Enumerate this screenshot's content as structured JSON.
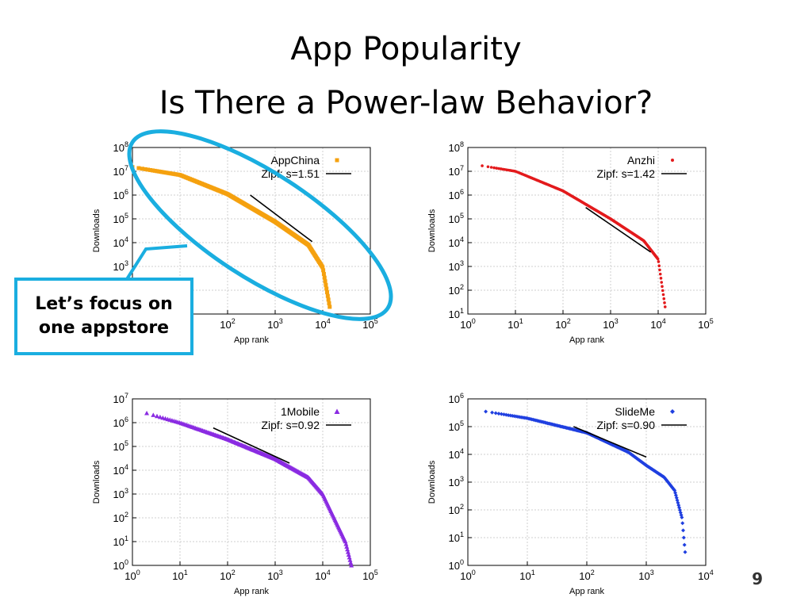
{
  "slide": {
    "title_line1": "App Popularity",
    "title_line2": "Is There a Power-law Behavior?",
    "callout": {
      "line1": "Let’s focus on",
      "line2": "one appstore"
    },
    "page_number": "9",
    "accent_color": "#1aaee0"
  },
  "chart_data": [
    {
      "type": "scatter",
      "title": "",
      "xlabel": "App rank",
      "ylabel": "Downloads",
      "xscale": "log",
      "yscale": "log",
      "xlim_exp": [
        0,
        5
      ],
      "ylim_exp": [
        1,
        8
      ],
      "grid": true,
      "legend_position": "top-right",
      "series": [
        {
          "name": "AppChina",
          "color": "#f5a10f",
          "marker": "square",
          "points": [
            [
              1,
              15000000
            ],
            [
              10,
              7000000
            ],
            [
              100,
              1100000
            ],
            [
              1000,
              75000
            ],
            [
              5000,
              8000
            ],
            [
              10000,
              900
            ],
            [
              14000,
              20
            ]
          ]
        },
        {
          "name": "Zipf: s=1.51",
          "color": "#000000",
          "marker": "line",
          "exponent": 1.51,
          "points": [
            [
              300,
              1000000
            ],
            [
              6000,
              11000
            ]
          ]
        }
      ]
    },
    {
      "type": "scatter",
      "title": "",
      "xlabel": "App rank",
      "ylabel": "Downloads",
      "xscale": "log",
      "yscale": "log",
      "xlim_exp": [
        0,
        5
      ],
      "ylim_exp": [
        1,
        8
      ],
      "grid": true,
      "legend_position": "top-right",
      "series": [
        {
          "name": "Anzhi",
          "color": "#e31a1c",
          "marker": "dot",
          "points": [
            [
              2,
              17000000
            ],
            [
              10,
              10000000
            ],
            [
              100,
              1500000
            ],
            [
              1000,
              100000
            ],
            [
              5000,
              12000
            ],
            [
              10000,
              2000
            ],
            [
              14000,
              20
            ]
          ]
        },
        {
          "name": "Zipf: s=1.42",
          "color": "#000000",
          "marker": "line",
          "exponent": 1.42,
          "points": [
            [
              300,
              300000
            ],
            [
              7000,
              4000
            ]
          ]
        }
      ]
    },
    {
      "type": "scatter",
      "title": "",
      "xlabel": "App rank",
      "ylabel": "Downloads",
      "xscale": "log",
      "yscale": "log",
      "xlim_exp": [
        0,
        5
      ],
      "ylim_exp": [
        0,
        7
      ],
      "grid": true,
      "legend_position": "top-right",
      "series": [
        {
          "name": "1Mobile",
          "color": "#8a2be2",
          "marker": "triangle",
          "points": [
            [
              2,
              2500000
            ],
            [
              10,
              1000000
            ],
            [
              100,
              200000
            ],
            [
              1000,
              30000
            ],
            [
              5000,
              5000
            ],
            [
              10000,
              1000
            ],
            [
              30000,
              10
            ],
            [
              40000,
              1
            ]
          ]
        },
        {
          "name": "Zipf: s=0.92",
          "color": "#000000",
          "marker": "line",
          "exponent": 0.92,
          "points": [
            [
              50,
              600000
            ],
            [
              2000,
              20000
            ]
          ]
        }
      ]
    },
    {
      "type": "scatter",
      "title": "",
      "xlabel": "App rank",
      "ylabel": "Downloads",
      "xscale": "log",
      "yscale": "log",
      "xlim_exp": [
        0,
        4
      ],
      "ylim_exp": [
        0,
        6
      ],
      "grid": true,
      "legend_position": "top-right",
      "series": [
        {
          "name": "SlideMe",
          "color": "#1f3fe0",
          "marker": "diamond",
          "points": [
            [
              2,
              350000
            ],
            [
              10,
              200000
            ],
            [
              100,
              60000
            ],
            [
              500,
              12000
            ],
            [
              1000,
              4000
            ],
            [
              2000,
              1500
            ],
            [
              3000,
              500
            ],
            [
              4000,
              50
            ],
            [
              4500,
              3
            ]
          ]
        },
        {
          "name": "Zipf: s=0.90",
          "color": "#000000",
          "marker": "line",
          "exponent": 0.9,
          "points": [
            [
              60,
              100000
            ],
            [
              1000,
              8000
            ]
          ]
        }
      ]
    }
  ]
}
